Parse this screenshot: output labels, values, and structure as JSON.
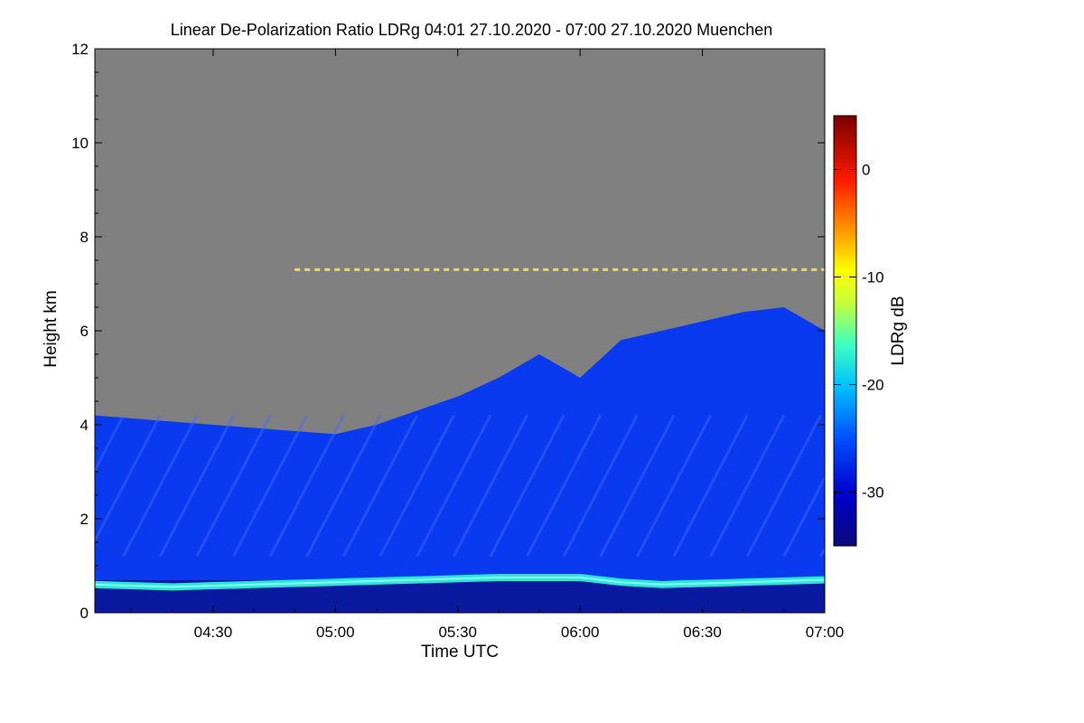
{
  "chart_data": {
    "type": "heatmap",
    "title": "Linear De-Polarization Ratio LDRg   04:01 27.10.2020 - 07:00 27.10.2020 Muenchen",
    "xlabel": "Time UTC",
    "ylabel": "Height km",
    "colorbar_label": "LDRg dB",
    "x_range_minutes": [
      241,
      420
    ],
    "x_ticks": [
      {
        "minute": 270,
        "label": "04:30"
      },
      {
        "minute": 300,
        "label": "05:00"
      },
      {
        "minute": 330,
        "label": "05:30"
      },
      {
        "minute": 360,
        "label": "06:00"
      },
      {
        "minute": 390,
        "label": "06:30"
      },
      {
        "minute": 420,
        "label": "07:00"
      }
    ],
    "ylim": [
      0,
      12
    ],
    "y_ticks": [
      {
        "value": 0,
        "label": "0"
      },
      {
        "value": 2,
        "label": "2"
      },
      {
        "value": 4,
        "label": "4"
      },
      {
        "value": 6,
        "label": "6"
      },
      {
        "value": 8,
        "label": "8"
      },
      {
        "value": 10,
        "label": "10"
      },
      {
        "value": 12,
        "label": "12"
      }
    ],
    "colorbar_range_db": [
      -35,
      5
    ],
    "colorbar_ticks": [
      {
        "value": 0,
        "label": "0"
      },
      {
        "value": -10,
        "label": "-10"
      },
      {
        "value": -20,
        "label": "-20"
      },
      {
        "value": -30,
        "label": "-30"
      }
    ],
    "features": {
      "no_data_color": "#808080",
      "cloud_top_km": [
        [
          241,
          4.2
        ],
        [
          255,
          4.1
        ],
        [
          270,
          4.0
        ],
        [
          285,
          3.9
        ],
        [
          300,
          3.8
        ],
        [
          310,
          4.0
        ],
        [
          320,
          4.3
        ],
        [
          330,
          4.6
        ],
        [
          340,
          5.0
        ],
        [
          350,
          5.5
        ],
        [
          360,
          5.0
        ],
        [
          370,
          5.8
        ],
        [
          380,
          6.0
        ],
        [
          390,
          6.2
        ],
        [
          400,
          6.4
        ],
        [
          410,
          6.5
        ],
        [
          420,
          6.0
        ]
      ],
      "thin_layer_km": 7.3,
      "thin_layer_minutes": [
        290,
        420
      ],
      "boundary_layer_km": [
        [
          241,
          0.6
        ],
        [
          260,
          0.55
        ],
        [
          280,
          0.6
        ],
        [
          300,
          0.65
        ],
        [
          320,
          0.7
        ],
        [
          340,
          0.75
        ],
        [
          360,
          0.75
        ],
        [
          370,
          0.65
        ],
        [
          380,
          0.6
        ],
        [
          400,
          0.65
        ],
        [
          420,
          0.7
        ]
      ]
    },
    "palette": {
      "background": "#ffffff",
      "no_data": "#808080"
    }
  }
}
